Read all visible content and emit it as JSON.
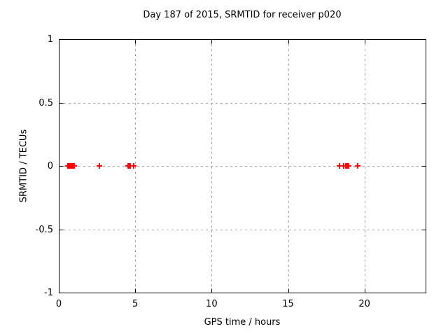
{
  "chart_data": {
    "type": "scatter",
    "title": "Day 187 of 2015, SRMTID for receiver p020",
    "xlabel": "GPS time / hours",
    "ylabel": "SRMTID / TECUs",
    "xlim": [
      0,
      24
    ],
    "ylim": [
      -1,
      1
    ],
    "xticks": [
      0,
      5,
      10,
      15,
      20
    ],
    "xtick_labels": [
      "0",
      "5",
      "10",
      "15",
      "20"
    ],
    "yticks": [
      1,
      0.5,
      0,
      -0.5,
      -1
    ],
    "ytick_labels": [
      "1",
      "0.5",
      "0",
      "-0.5",
      "-1"
    ],
    "grid": true,
    "legend": "none",
    "marker": "plus",
    "series": [
      {
        "name": "SRMTID",
        "x": [
          0.6,
          0.65,
          0.7,
          0.75,
          0.8,
          0.85,
          0.9,
          0.95,
          1.0,
          2.65,
          4.53,
          4.6,
          4.67,
          4.88,
          18.35,
          18.65,
          18.78,
          18.83,
          18.88,
          18.96,
          19.55
        ],
        "y": [
          0,
          0,
          0,
          0,
          0,
          0,
          0,
          0,
          0,
          0,
          0,
          0,
          0,
          0,
          0,
          0,
          0,
          0,
          0,
          0,
          0
        ]
      }
    ],
    "colors": {
      "background": "#ffffff",
      "axis": "#000000",
      "grid": "#a0a0a0",
      "marker": "#ff0000",
      "text": "#000000"
    }
  }
}
